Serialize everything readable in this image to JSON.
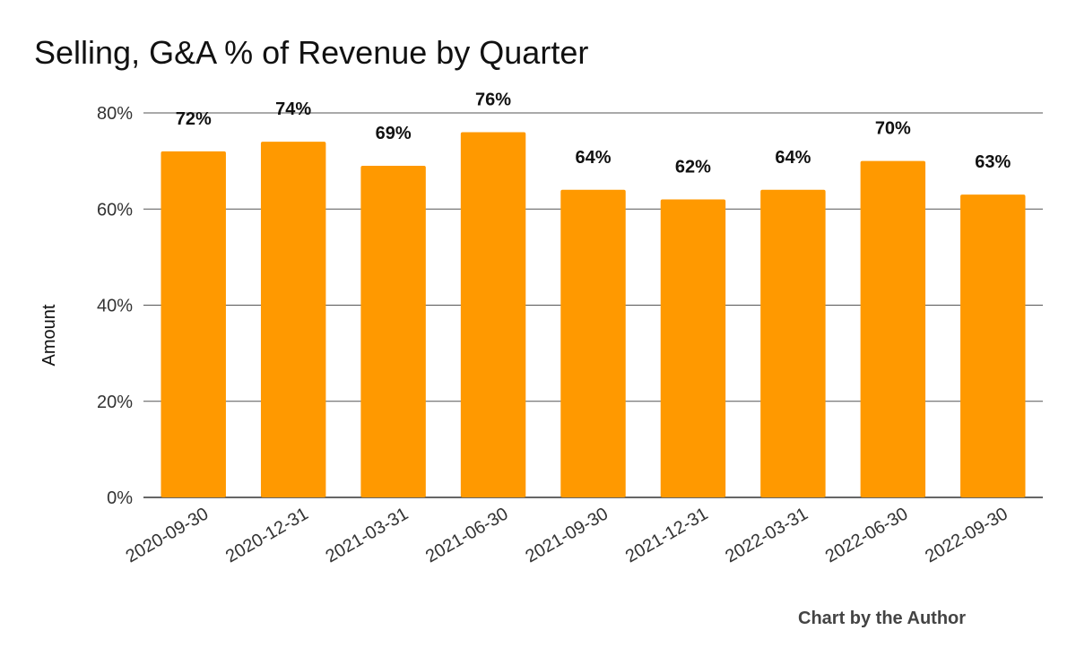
{
  "credit": "Chart by the Author",
  "chart_data": {
    "type": "bar",
    "title": "Selling, G&A % of Revenue by Quarter",
    "xlabel": "",
    "ylabel": "Amount",
    "categories": [
      "2020-09-30",
      "2020-12-31",
      "2021-03-31",
      "2021-06-30",
      "2021-09-30",
      "2021-12-31",
      "2022-03-31",
      "2022-06-30",
      "2022-09-30"
    ],
    "values": [
      72,
      74,
      69,
      76,
      64,
      62,
      64,
      70,
      63
    ],
    "data_labels": [
      "72%",
      "74%",
      "69%",
      "76%",
      "64%",
      "62%",
      "64%",
      "70%",
      "63%"
    ],
    "ylim": [
      0,
      80
    ],
    "yticks": [
      0,
      20,
      40,
      60,
      80
    ],
    "ytick_labels": [
      "0%",
      "20%",
      "40%",
      "60%",
      "80%"
    ],
    "bar_color": "#ff9900",
    "grid": true,
    "legend": "none"
  }
}
